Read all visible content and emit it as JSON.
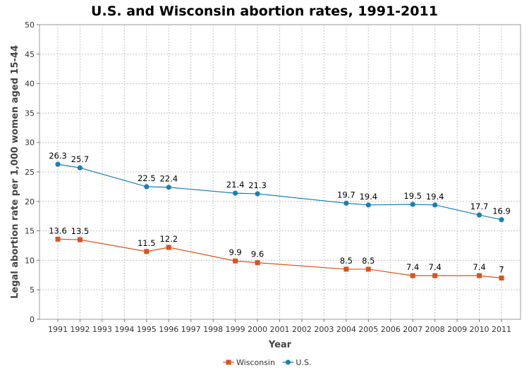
{
  "chart_data": {
    "type": "line",
    "title": "U.S. and Wisconsin abortion rates, 1991-2011",
    "xlabel": "Year",
    "ylabel": "Legal abortion rate per 1,000 women aged 15-44",
    "categories": [
      "1991",
      "1992",
      "1993",
      "1994",
      "1995",
      "1996",
      "1997",
      "1998",
      "1999",
      "2000",
      "2001",
      "2002",
      "2003",
      "2004",
      "2005",
      "2006",
      "2007",
      "2008",
      "2009",
      "2010",
      "2011"
    ],
    "ylim": [
      0,
      50
    ],
    "yticks": [
      0,
      5,
      10,
      15,
      20,
      25,
      30,
      35,
      40,
      45,
      50
    ],
    "grid": true,
    "legend_position": "bottom-center",
    "series": [
      {
        "name": "Wisconsin",
        "color": "#d9531e",
        "marker": "square",
        "points": [
          {
            "x": "1991",
            "y": 13.6,
            "label": "13.6"
          },
          {
            "x": "1992",
            "y": 13.5,
            "label": "13.5"
          },
          {
            "x": "1995",
            "y": 11.5,
            "label": "11.5"
          },
          {
            "x": "1996",
            "y": 12.2,
            "label": "12.2"
          },
          {
            "x": "1999",
            "y": 9.9,
            "label": "9.9"
          },
          {
            "x": "2000",
            "y": 9.6,
            "label": "9.6"
          },
          {
            "x": "2004",
            "y": 8.5,
            "label": "8.5"
          },
          {
            "x": "2005",
            "y": 8.5,
            "label": "8.5"
          },
          {
            "x": "2007",
            "y": 7.4,
            "label": "7.4"
          },
          {
            "x": "2008",
            "y": 7.4,
            "label": "7.4"
          },
          {
            "x": "2010",
            "y": 7.4,
            "label": "7.4"
          },
          {
            "x": "2011",
            "y": 7.0,
            "label": "7"
          }
        ]
      },
      {
        "name": "U.S.",
        "color": "#1a7fb5",
        "marker": "circle",
        "points": [
          {
            "x": "1991",
            "y": 26.3,
            "label": "26.3"
          },
          {
            "x": "1992",
            "y": 25.7,
            "label": "25.7"
          },
          {
            "x": "1995",
            "y": 22.5,
            "label": "22.5"
          },
          {
            "x": "1996",
            "y": 22.4,
            "label": "22.4"
          },
          {
            "x": "1999",
            "y": 21.4,
            "label": "21.4"
          },
          {
            "x": "2000",
            "y": 21.3,
            "label": "21.3"
          },
          {
            "x": "2004",
            "y": 19.7,
            "label": "19.7"
          },
          {
            "x": "2005",
            "y": 19.4,
            "label": "19.4"
          },
          {
            "x": "2007",
            "y": 19.5,
            "label": "19.5"
          },
          {
            "x": "2008",
            "y": 19.4,
            "label": "19.4"
          },
          {
            "x": "2010",
            "y": 17.7,
            "label": "17.7"
          },
          {
            "x": "2011",
            "y": 16.9,
            "label": "16.9"
          }
        ]
      }
    ]
  }
}
